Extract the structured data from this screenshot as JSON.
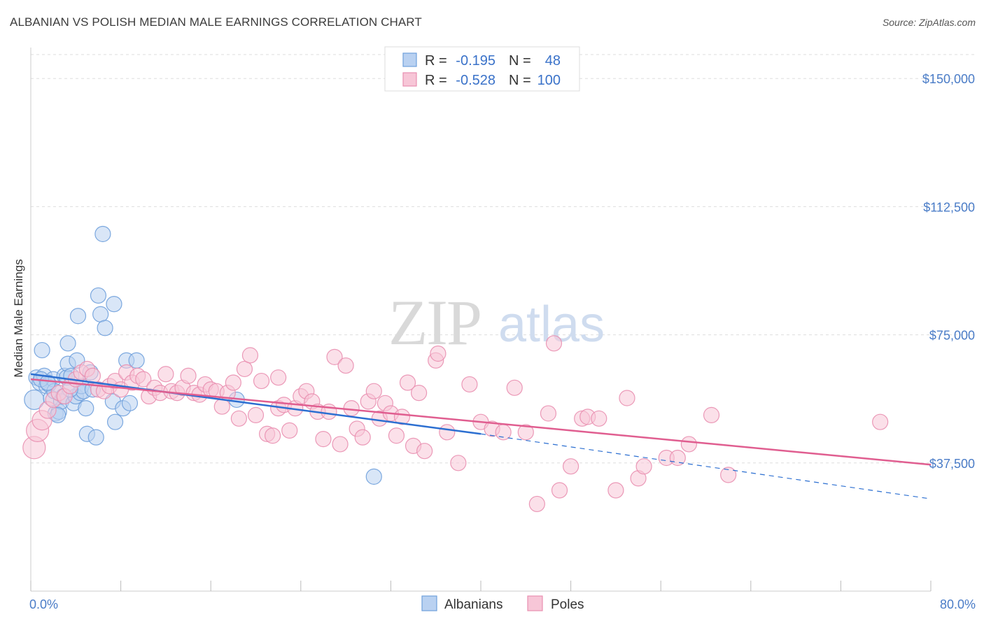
{
  "title": "ALBANIAN VS POLISH MEDIAN MALE EARNINGS CORRELATION CHART",
  "source": "Source: ZipAtlas.com",
  "colors": {
    "blue": "#6fa0dc",
    "blue_fill": "#b9d1f1",
    "blue_line": "#2c6fd1",
    "pink": "#e98fb0",
    "pink_fill": "#f7c6d7",
    "pink_line": "#e05e90",
    "tick_text": "#4a7cc7",
    "grid": "#dddddd"
  },
  "legend": {
    "rows": [
      {
        "r_label": "R =",
        "r_value": "-0.195",
        "n_label": "N =",
        "n_value": "48",
        "color": "blue"
      },
      {
        "r_label": "R =",
        "r_value": "-0.528",
        "n_label": "N =",
        "n_value": "100",
        "color": "pink"
      }
    ]
  },
  "bottom_legend": [
    {
      "label": "Albanians",
      "color": "blue"
    },
    {
      "label": "Poles",
      "color": "pink"
    }
  ],
  "chart_data": {
    "type": "scatter",
    "title": "ALBANIAN VS POLISH MEDIAN MALE EARNINGS CORRELATION CHART",
    "xlabel": "",
    "ylabel": "Median Male Earnings",
    "xlim": [
      0,
      80
    ],
    "ylim": [
      0,
      157000
    ],
    "x_tick_labels": [
      {
        "value": 0,
        "label": "0.0%"
      },
      {
        "value": 80,
        "label": "80.0%"
      }
    ],
    "y_ticks": [
      {
        "value": 37500,
        "label": "$37,500"
      },
      {
        "value": 75000,
        "label": "$75,000"
      },
      {
        "value": 112500,
        "label": "$112,500"
      },
      {
        "value": 150000,
        "label": "$150,000"
      }
    ],
    "watermark": "ZIPatlas",
    "grid": true,
    "series": [
      {
        "name": "Albanians",
        "color": "blue",
        "trend": {
          "x0": 0,
          "y0": 63500,
          "x1": 40,
          "y1": 46000,
          "dash_to_x": 80,
          "dash_to_y": 27000
        },
        "points": [
          [
            0.3,
            56000,
            14
          ],
          [
            0.5,
            62500,
            11
          ],
          [
            0.8,
            61000,
            11
          ],
          [
            1.0,
            70500,
            11
          ],
          [
            1.2,
            63000,
            11
          ],
          [
            1.4,
            60000,
            11
          ],
          [
            1.6,
            60500,
            11
          ],
          [
            1.8,
            56500,
            11
          ],
          [
            2.0,
            62000,
            11
          ],
          [
            2.1,
            58500,
            11
          ],
          [
            2.2,
            52000,
            11
          ],
          [
            2.5,
            52500,
            11
          ],
          [
            2.7,
            55500,
            11
          ],
          [
            2.9,
            57000,
            11
          ],
          [
            3.0,
            63000,
            11
          ],
          [
            3.2,
            62500,
            11
          ],
          [
            3.3,
            66500,
            11
          ],
          [
            3.3,
            72500,
            11
          ],
          [
            3.6,
            63000,
            11
          ],
          [
            3.8,
            55000,
            11
          ],
          [
            4.0,
            57000,
            11
          ],
          [
            4.1,
            67500,
            11
          ],
          [
            4.2,
            80500,
            11
          ],
          [
            4.4,
            58000,
            11
          ],
          [
            4.5,
            60000,
            11
          ],
          [
            4.7,
            58500,
            11
          ],
          [
            4.9,
            53500,
            11
          ],
          [
            5.0,
            46000,
            11
          ],
          [
            5.3,
            64000,
            11
          ],
          [
            5.5,
            59000,
            11
          ],
          [
            5.8,
            45000,
            11
          ],
          [
            6.0,
            86500,
            11
          ],
          [
            6.2,
            81000,
            11
          ],
          [
            6.4,
            104500,
            11
          ],
          [
            6.6,
            77000,
            11
          ],
          [
            7.3,
            55500,
            11
          ],
          [
            7.4,
            84000,
            11
          ],
          [
            7.5,
            49500,
            11
          ],
          [
            8.2,
            53500,
            11
          ],
          [
            8.5,
            67500,
            11
          ],
          [
            8.8,
            55000,
            11
          ],
          [
            9.4,
            67500,
            11
          ],
          [
            0.9,
            62000,
            11
          ],
          [
            1.5,
            61000,
            11
          ],
          [
            2.4,
            51500,
            11
          ],
          [
            3.5,
            59000,
            11
          ],
          [
            18.3,
            56000,
            11
          ],
          [
            30.5,
            33500,
            11
          ]
        ]
      },
      {
        "name": "Poles",
        "color": "pink",
        "trend": {
          "x0": 0,
          "y0": 62000,
          "x1": 80,
          "y1": 37000
        },
        "points": [
          [
            0.3,
            42000,
            16
          ],
          [
            0.6,
            47000,
            16
          ],
          [
            1.0,
            50000,
            14
          ],
          [
            1.5,
            53000,
            12
          ],
          [
            2.0,
            56000,
            11
          ],
          [
            2.5,
            58000,
            11
          ],
          [
            3.0,
            57000,
            11
          ],
          [
            3.5,
            60000,
            11
          ],
          [
            4.0,
            62000,
            11
          ],
          [
            4.5,
            64000,
            11
          ],
          [
            5.0,
            65000,
            11
          ],
          [
            5.5,
            63000,
            11
          ],
          [
            6.0,
            59000,
            11
          ],
          [
            6.5,
            58500,
            11
          ],
          [
            7.0,
            60000,
            11
          ],
          [
            7.5,
            61500,
            11
          ],
          [
            8.0,
            59000,
            11
          ],
          [
            8.5,
            64000,
            11
          ],
          [
            9.0,
            61000,
            11
          ],
          [
            9.5,
            63000,
            11
          ],
          [
            10.0,
            62000,
            11
          ],
          [
            10.5,
            57000,
            11
          ],
          [
            11.0,
            59500,
            11
          ],
          [
            11.5,
            58000,
            11
          ],
          [
            12.0,
            63500,
            11
          ],
          [
            12.5,
            58500,
            11
          ],
          [
            13.0,
            58000,
            11
          ],
          [
            13.5,
            59500,
            11
          ],
          [
            14.0,
            63000,
            11
          ],
          [
            14.5,
            58000,
            11
          ],
          [
            15.0,
            57500,
            11
          ],
          [
            15.5,
            60500,
            11
          ],
          [
            16.0,
            59000,
            11
          ],
          [
            16.5,
            58500,
            11
          ],
          [
            17.0,
            54000,
            11
          ],
          [
            17.5,
            58000,
            11
          ],
          [
            18.0,
            61000,
            11
          ],
          [
            18.5,
            50500,
            11
          ],
          [
            19.0,
            65000,
            11
          ],
          [
            19.5,
            69000,
            11
          ],
          [
            20.0,
            51500,
            11
          ],
          [
            20.5,
            61500,
            11
          ],
          [
            21.0,
            46000,
            11
          ],
          [
            21.5,
            45500,
            11
          ],
          [
            22.0,
            53500,
            11
          ],
          [
            22.0,
            62500,
            11
          ],
          [
            22.5,
            54500,
            11
          ],
          [
            23.0,
            47000,
            11
          ],
          [
            23.5,
            53500,
            11
          ],
          [
            24.0,
            57000,
            11
          ],
          [
            24.5,
            58500,
            11
          ],
          [
            25.0,
            55500,
            11
          ],
          [
            25.5,
            52500,
            11
          ],
          [
            26.0,
            44500,
            11
          ],
          [
            26.5,
            52500,
            11
          ],
          [
            27.0,
            68500,
            11
          ],
          [
            27.5,
            43000,
            11
          ],
          [
            28.0,
            66000,
            11
          ],
          [
            28.5,
            53500,
            11
          ],
          [
            29.0,
            47500,
            11
          ],
          [
            29.5,
            45000,
            11
          ],
          [
            30.0,
            55500,
            11
          ],
          [
            30.5,
            58500,
            11
          ],
          [
            31.0,
            50500,
            11
          ],
          [
            31.5,
            55000,
            11
          ],
          [
            32.0,
            52000,
            11
          ],
          [
            32.5,
            45500,
            11
          ],
          [
            33.0,
            51000,
            11
          ],
          [
            33.5,
            61000,
            11
          ],
          [
            34.0,
            42500,
            11
          ],
          [
            34.5,
            58000,
            11
          ],
          [
            35.0,
            41000,
            11
          ],
          [
            36.0,
            67500,
            11
          ],
          [
            36.2,
            69500,
            11
          ],
          [
            37.0,
            46500,
            11
          ],
          [
            38.0,
            37500,
            11
          ],
          [
            39.0,
            60500,
            11
          ],
          [
            40.0,
            49500,
            11
          ],
          [
            41.0,
            47500,
            11
          ],
          [
            42.0,
            46500,
            11
          ],
          [
            43.0,
            59500,
            11
          ],
          [
            44.0,
            46500,
            11
          ],
          [
            45.0,
            25500,
            11
          ],
          [
            46.0,
            52000,
            11
          ],
          [
            46.5,
            72500,
            11
          ],
          [
            47.0,
            29500,
            11
          ],
          [
            48.0,
            36500,
            11
          ],
          [
            49.0,
            50500,
            11
          ],
          [
            49.5,
            51000,
            11
          ],
          [
            50.5,
            50500,
            11
          ],
          [
            52.0,
            29500,
            11
          ],
          [
            53.0,
            56500,
            11
          ],
          [
            54.0,
            33000,
            11
          ],
          [
            54.5,
            36500,
            11
          ],
          [
            56.5,
            39000,
            11
          ],
          [
            57.5,
            39000,
            11
          ],
          [
            58.5,
            43000,
            11
          ],
          [
            60.5,
            51500,
            11
          ],
          [
            62.0,
            34000,
            11
          ],
          [
            75.5,
            49500,
            11
          ]
        ]
      }
    ]
  }
}
